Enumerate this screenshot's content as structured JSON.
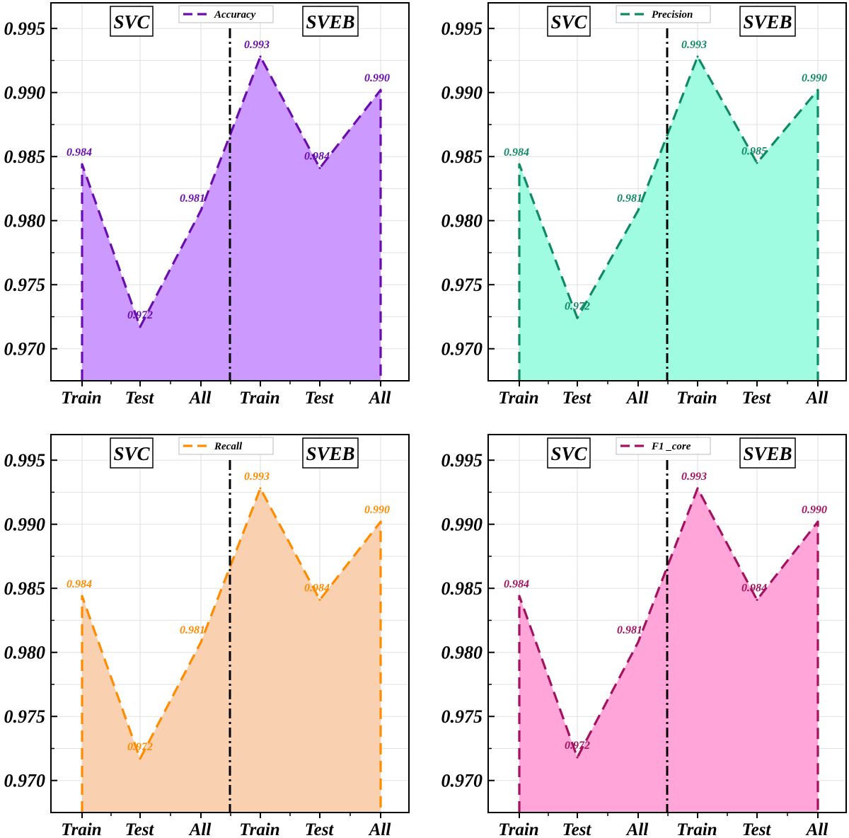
{
  "chart_data": [
    {
      "type": "area",
      "categories": [
        "Train",
        "Test",
        "All",
        "Train",
        "Test",
        "All"
      ],
      "group_labels": [
        "SVC",
        "SVEB"
      ],
      "series": [
        {
          "name": "Accuracy",
          "values": [
            0.9844,
            0.9717,
            0.9808,
            0.9928,
            0.9841,
            0.9902
          ]
        }
      ],
      "data_labels": [
        "0.984",
        "0.972",
        "0.981",
        "0.993",
        "0.984",
        "0.990"
      ],
      "yticks": [
        "0.970",
        "0.975",
        "0.980",
        "0.985",
        "0.990",
        "0.995"
      ],
      "ylim": [
        0.9675,
        0.997
      ],
      "grid": true,
      "legend": "top-center",
      "line_color": "#6a0dad",
      "fill_color": "#cc99ff"
    },
    {
      "type": "area",
      "categories": [
        "Train",
        "Test",
        "All",
        "Train",
        "Test",
        "All"
      ],
      "group_labels": [
        "SVC",
        "SVEB"
      ],
      "series": [
        {
          "name": "Precision",
          "values": [
            0.9844,
            0.9724,
            0.9808,
            0.9928,
            0.9845,
            0.9902
          ]
        }
      ],
      "data_labels": [
        "0.984",
        "0.972",
        "0.981",
        "0.993",
        "0.985",
        "0.990"
      ],
      "yticks": [
        "0.970",
        "0.975",
        "0.980",
        "0.985",
        "0.990",
        "0.995"
      ],
      "ylim": [
        0.9675,
        0.997
      ],
      "grid": true,
      "legend": "top-center",
      "line_color": "#0f8a63",
      "fill_color": "#9ffce0"
    },
    {
      "type": "area",
      "categories": [
        "Train",
        "Test",
        "All",
        "Train",
        "Test",
        "All"
      ],
      "group_labels": [
        "SVC",
        "SVEB"
      ],
      "series": [
        {
          "name": "Recall",
          "values": [
            0.9844,
            0.9717,
            0.9808,
            0.9928,
            0.9841,
            0.9902
          ]
        }
      ],
      "data_labels": [
        "0.984",
        "0.972",
        "0.981",
        "0.993",
        "0.984",
        "0.990"
      ],
      "yticks": [
        "0.970",
        "0.975",
        "0.980",
        "0.985",
        "0.990",
        "0.995"
      ],
      "ylim": [
        0.9675,
        0.997
      ],
      "grid": true,
      "legend": "top-center",
      "line_color": "#ff8c00",
      "fill_color": "#f9d1b1"
    },
    {
      "type": "area",
      "categories": [
        "Train",
        "Test",
        "All",
        "Train",
        "Test",
        "All"
      ],
      "group_labels": [
        "SVC",
        "SVEB"
      ],
      "series": [
        {
          "name": "F1 _core",
          "values": [
            0.9844,
            0.9718,
            0.9808,
            0.9928,
            0.9841,
            0.9902
          ]
        }
      ],
      "data_labels": [
        "0.984",
        "0.972",
        "0.981",
        "0.993",
        "0.984",
        "0.990"
      ],
      "yticks": [
        "0.970",
        "0.975",
        "0.980",
        "0.985",
        "0.990",
        "0.995"
      ],
      "ylim": [
        0.9675,
        0.997
      ],
      "grid": true,
      "legend": "top-center",
      "line_color": "#a3125e",
      "fill_color": "#ffa5d9"
    }
  ]
}
